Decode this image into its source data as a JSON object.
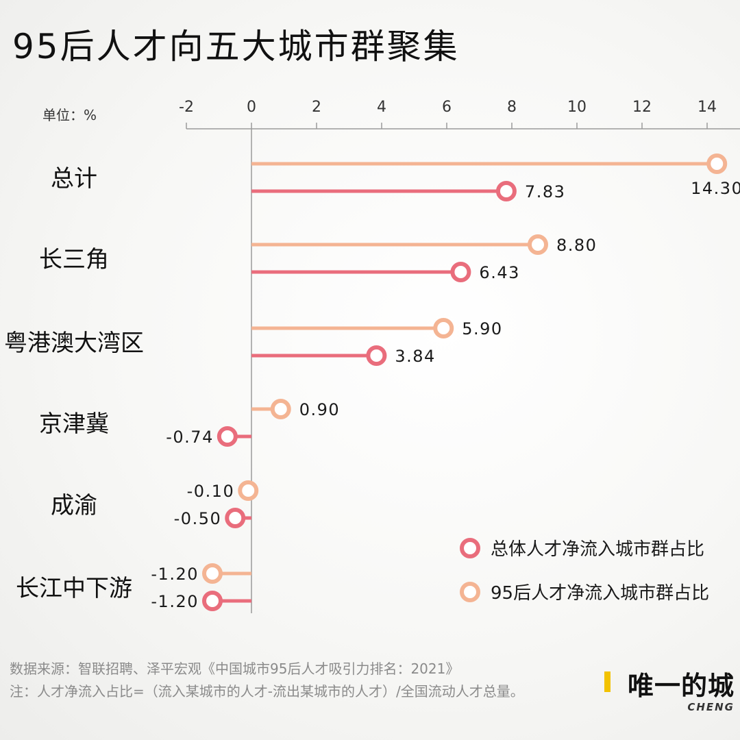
{
  "chart_data": {
    "type": "bar",
    "title": "95后人才向五大城市群聚集",
    "unit_label": "单位：%",
    "xlim": [
      -2,
      14.8
    ],
    "x_ticks": [
      -2,
      0,
      2,
      4,
      6,
      8,
      10,
      12,
      14
    ],
    "categories": [
      "总计",
      "长三角",
      "粤港澳大湾区",
      "京津冀",
      "成渝",
      "长江中下游"
    ],
    "series": [
      {
        "name": "95后人才净流入城市群占比",
        "color": "#f4b493",
        "values": [
          14.3,
          8.8,
          5.9,
          0.9,
          -0.1,
          -1.2
        ],
        "labels": [
          "14.30",
          "8.80",
          "5.90",
          "0.90",
          "-0.10",
          "-1.20"
        ]
      },
      {
        "name": "总体人才净流入城市群占比",
        "color": "#e96d7c",
        "values": [
          7.83,
          6.43,
          3.84,
          -0.74,
          -0.5,
          -1.2
        ],
        "labels": [
          "7.83",
          "6.43",
          "3.84",
          "-0.74",
          "-0.50",
          "-1.20"
        ]
      }
    ],
    "legend": {
      "position": "bottom-right",
      "entries": [
        "总体人才净流入城市群占比",
        "95后人才净流入城市群占比"
      ]
    },
    "grid": false
  },
  "footer": {
    "source": "数据来源：智联招聘、泽平宏观《中国城市95后人才吸引力排名：2021》",
    "note": "注：人才净流入占比=（流入某城市的人才-流出某城市的人才）/全国流动人才总量。"
  },
  "brand": {
    "name": "唯一的城",
    "sub": "CHENG"
  }
}
